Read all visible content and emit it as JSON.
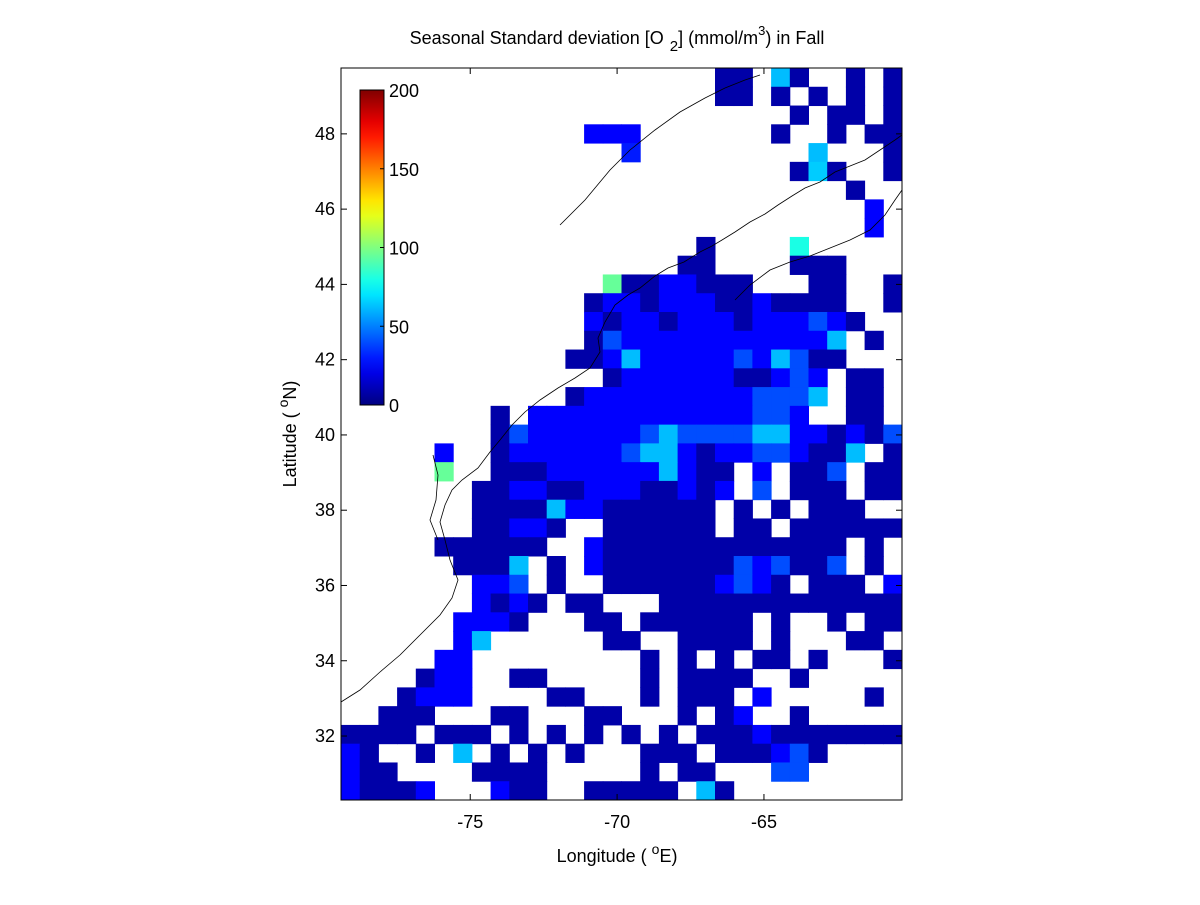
{
  "chart_data": {
    "type": "heatmap",
    "title_parts": [
      "Seasonal Standard deviation [O",
      "2",
      "] (mmol/m",
      "3",
      ") in  Fall"
    ],
    "xlabel_parts": [
      "Longitude ( ",
      "o",
      "E)"
    ],
    "ylabel_parts": [
      "Latitude ( ",
      "o",
      "N)"
    ],
    "xlim": [
      -79.4,
      -60.3
    ],
    "ylim": [
      30.3,
      49.75
    ],
    "xticks": [
      -75,
      -70,
      -65
    ],
    "yticks": [
      32,
      34,
      36,
      38,
      40,
      42,
      44,
      46,
      48
    ],
    "clim": [
      0,
      200
    ],
    "cticks": [
      0,
      50,
      100,
      150,
      200
    ],
    "colormap": "jet",
    "z": [
      [
        null,
        null,
        null,
        null,
        null,
        null,
        null,
        null,
        null,
        null,
        null,
        null,
        null,
        null,
        null,
        null,
        null,
        null,
        null,
        null,
        8,
        8,
        null,
        62,
        8,
        null,
        null,
        8,
        null,
        8
      ],
      [
        null,
        null,
        null,
        null,
        null,
        null,
        null,
        null,
        null,
        null,
        null,
        null,
        null,
        null,
        null,
        null,
        null,
        null,
        null,
        null,
        8,
        8,
        null,
        8,
        null,
        8,
        null,
        8,
        null,
        8
      ],
      [
        null,
        null,
        null,
        null,
        null,
        null,
        null,
        null,
        null,
        null,
        null,
        null,
        null,
        null,
        null,
        null,
        null,
        null,
        null,
        null,
        null,
        null,
        null,
        null,
        8,
        null,
        8,
        8,
        null,
        8
      ],
      [
        null,
        null,
        null,
        null,
        null,
        null,
        null,
        null,
        null,
        null,
        null,
        null,
        null,
        25,
        25,
        25,
        null,
        null,
        null,
        null,
        null,
        null,
        null,
        8,
        null,
        null,
        8,
        null,
        8,
        8
      ],
      [
        null,
        null,
        null,
        null,
        null,
        null,
        null,
        null,
        null,
        null,
        null,
        null,
        null,
        null,
        null,
        30,
        null,
        null,
        null,
        null,
        null,
        null,
        null,
        null,
        null,
        62,
        null,
        null,
        null,
        8
      ],
      [
        null,
        null,
        null,
        null,
        null,
        null,
        null,
        null,
        null,
        null,
        null,
        null,
        null,
        null,
        null,
        null,
        null,
        null,
        null,
        null,
        null,
        null,
        null,
        null,
        8,
        65,
        8,
        null,
        null,
        8
      ],
      [
        null,
        null,
        null,
        null,
        null,
        null,
        null,
        null,
        null,
        null,
        null,
        null,
        null,
        null,
        null,
        null,
        null,
        null,
        null,
        null,
        null,
        null,
        null,
        null,
        null,
        null,
        null,
        8,
        null,
        null
      ],
      [
        null,
        null,
        null,
        null,
        null,
        null,
        null,
        null,
        null,
        null,
        null,
        null,
        null,
        null,
        null,
        null,
        null,
        null,
        null,
        null,
        null,
        null,
        null,
        null,
        null,
        null,
        null,
        null,
        25,
        null
      ],
      [
        null,
        null,
        null,
        null,
        null,
        null,
        null,
        null,
        null,
        null,
        null,
        null,
        null,
        null,
        null,
        null,
        null,
        null,
        null,
        null,
        null,
        null,
        null,
        null,
        null,
        null,
        null,
        null,
        25,
        null
      ],
      [
        null,
        null,
        null,
        null,
        null,
        null,
        null,
        null,
        null,
        null,
        null,
        null,
        null,
        null,
        null,
        null,
        null,
        null,
        null,
        8,
        null,
        null,
        null,
        null,
        80,
        null,
        null,
        null,
        null,
        null
      ],
      [
        null,
        null,
        null,
        null,
        null,
        null,
        null,
        null,
        null,
        null,
        null,
        null,
        null,
        null,
        null,
        null,
        null,
        null,
        8,
        8,
        null,
        null,
        null,
        null,
        8,
        8,
        8,
        null,
        null,
        null
      ],
      [
        null,
        null,
        null,
        null,
        null,
        null,
        null,
        null,
        null,
        null,
        null,
        null,
        null,
        null,
        95,
        8,
        8,
        25,
        25,
        8,
        8,
        8,
        null,
        null,
        null,
        8,
        8,
        null,
        null,
        8
      ],
      [
        null,
        null,
        null,
        null,
        null,
        null,
        null,
        null,
        null,
        null,
        null,
        null,
        null,
        8,
        25,
        25,
        8,
        25,
        25,
        25,
        8,
        8,
        25,
        8,
        8,
        8,
        8,
        null,
        null,
        8
      ],
      [
        null,
        null,
        null,
        null,
        null,
        null,
        null,
        null,
        null,
        null,
        null,
        null,
        null,
        25,
        8,
        25,
        25,
        8,
        25,
        25,
        25,
        8,
        25,
        25,
        25,
        40,
        25,
        8,
        null,
        null
      ],
      [
        null,
        null,
        null,
        null,
        null,
        null,
        null,
        null,
        null,
        null,
        null,
        null,
        null,
        8,
        40,
        25,
        25,
        25,
        25,
        25,
        25,
        25,
        25,
        25,
        25,
        25,
        62,
        null,
        8,
        null
      ],
      [
        null,
        null,
        null,
        null,
        null,
        null,
        null,
        null,
        null,
        null,
        null,
        null,
        8,
        8,
        25,
        62,
        25,
        25,
        25,
        25,
        25,
        40,
        25,
        62,
        40,
        8,
        8,
        null,
        null,
        null
      ],
      [
        null,
        null,
        null,
        null,
        null,
        null,
        null,
        null,
        null,
        null,
        null,
        null,
        null,
        null,
        8,
        25,
        25,
        25,
        25,
        25,
        25,
        8,
        8,
        25,
        40,
        25,
        null,
        8,
        8,
        null
      ],
      [
        null,
        null,
        null,
        null,
        null,
        null,
        null,
        null,
        null,
        null,
        null,
        null,
        8,
        25,
        25,
        25,
        25,
        25,
        25,
        25,
        25,
        25,
        40,
        40,
        40,
        62,
        null,
        8,
        8,
        null
      ],
      [
        null,
        null,
        null,
        null,
        null,
        null,
        null,
        null,
        8,
        null,
        25,
        25,
        25,
        25,
        25,
        25,
        25,
        25,
        25,
        25,
        25,
        25,
        40,
        40,
        25,
        null,
        null,
        8,
        8,
        null
      ],
      [
        null,
        null,
        null,
        null,
        null,
        null,
        null,
        null,
        8,
        40,
        25,
        25,
        25,
        25,
        25,
        25,
        40,
        62,
        40,
        40,
        40,
        40,
        62,
        62,
        25,
        25,
        8,
        25,
        8,
        40
      ],
      [
        null,
        null,
        null,
        null,
        null,
        25,
        null,
        null,
        8,
        25,
        25,
        25,
        25,
        25,
        25,
        40,
        62,
        62,
        25,
        8,
        25,
        25,
        40,
        40,
        25,
        8,
        8,
        62,
        null,
        8
      ],
      [
        null,
        null,
        null,
        null,
        null,
        95,
        null,
        null,
        8,
        8,
        8,
        25,
        25,
        25,
        25,
        25,
        25,
        62,
        25,
        8,
        8,
        null,
        25,
        null,
        8,
        8,
        40,
        null,
        8,
        8
      ],
      [
        null,
        null,
        null,
        null,
        null,
        null,
        null,
        8,
        8,
        25,
        25,
        8,
        8,
        25,
        25,
        25,
        8,
        8,
        25,
        8,
        25,
        null,
        40,
        null,
        8,
        8,
        8,
        null,
        8,
        8
      ],
      [
        null,
        null,
        null,
        null,
        null,
        null,
        null,
        8,
        8,
        8,
        8,
        62,
        25,
        25,
        8,
        8,
        8,
        8,
        8,
        8,
        null,
        8,
        null,
        8,
        null,
        8,
        8,
        8,
        null,
        null
      ],
      [
        null,
        null,
        null,
        null,
        null,
        null,
        null,
        8,
        8,
        25,
        25,
        8,
        null,
        null,
        8,
        8,
        8,
        8,
        8,
        8,
        null,
        8,
        8,
        null,
        8,
        8,
        8,
        8,
        8,
        8
      ],
      [
        null,
        null,
        null,
        null,
        null,
        8,
        8,
        8,
        8,
        8,
        8,
        null,
        null,
        25,
        8,
        8,
        8,
        8,
        8,
        8,
        8,
        8,
        8,
        8,
        8,
        8,
        8,
        null,
        8,
        null
      ],
      [
        null,
        null,
        null,
        null,
        null,
        null,
        8,
        8,
        8,
        62,
        null,
        8,
        null,
        25,
        8,
        8,
        8,
        8,
        8,
        8,
        8,
        40,
        25,
        40,
        8,
        8,
        40,
        null,
        8,
        null
      ],
      [
        null,
        null,
        null,
        null,
        null,
        null,
        null,
        25,
        25,
        40,
        null,
        8,
        null,
        null,
        8,
        8,
        8,
        8,
        8,
        8,
        25,
        40,
        25,
        8,
        null,
        8,
        8,
        8,
        null,
        25
      ],
      [
        null,
        null,
        null,
        null,
        null,
        null,
        null,
        25,
        8,
        25,
        8,
        null,
        8,
        8,
        null,
        null,
        null,
        8,
        8,
        8,
        8,
        8,
        8,
        8,
        8,
        8,
        8,
        8,
        8,
        8
      ],
      [
        null,
        null,
        null,
        null,
        null,
        null,
        25,
        25,
        25,
        8,
        null,
        null,
        null,
        8,
        8,
        null,
        8,
        8,
        8,
        8,
        8,
        8,
        null,
        8,
        null,
        null,
        8,
        null,
        8,
        8
      ],
      [
        null,
        null,
        null,
        null,
        null,
        null,
        25,
        62,
        null,
        null,
        null,
        null,
        null,
        null,
        8,
        8,
        null,
        null,
        8,
        8,
        8,
        8,
        null,
        8,
        null,
        null,
        null,
        8,
        8,
        null
      ],
      [
        null,
        null,
        null,
        null,
        null,
        25,
        25,
        null,
        null,
        null,
        null,
        null,
        null,
        null,
        null,
        null,
        8,
        null,
        8,
        null,
        8,
        null,
        8,
        8,
        null,
        8,
        null,
        null,
        null,
        8
      ],
      [
        null,
        null,
        null,
        null,
        8,
        25,
        25,
        null,
        null,
        8,
        8,
        null,
        null,
        null,
        null,
        null,
        8,
        null,
        8,
        8,
        8,
        8,
        null,
        null,
        8,
        null,
        null,
        null,
        null,
        null
      ],
      [
        null,
        null,
        null,
        8,
        25,
        25,
        25,
        null,
        null,
        null,
        null,
        8,
        8,
        null,
        null,
        null,
        8,
        null,
        8,
        8,
        8,
        null,
        25,
        null,
        null,
        null,
        null,
        null,
        8,
        null
      ],
      [
        null,
        null,
        8,
        8,
        8,
        null,
        null,
        null,
        8,
        8,
        null,
        null,
        null,
        8,
        8,
        null,
        null,
        null,
        8,
        null,
        8,
        25,
        null,
        null,
        8,
        null,
        null,
        null,
        null,
        null
      ],
      [
        8,
        8,
        8,
        8,
        null,
        8,
        8,
        8,
        null,
        8,
        null,
        8,
        null,
        8,
        null,
        8,
        null,
        8,
        null,
        8,
        8,
        8,
        25,
        8,
        8,
        8,
        8,
        8,
        8,
        8
      ],
      [
        25,
        8,
        null,
        null,
        8,
        null,
        62,
        null,
        8,
        null,
        8,
        null,
        8,
        null,
        null,
        null,
        8,
        8,
        8,
        null,
        8,
        8,
        8,
        25,
        40,
        8,
        null,
        null,
        null,
        null
      ],
      [
        25,
        8,
        8,
        null,
        null,
        null,
        null,
        8,
        8,
        8,
        8,
        null,
        null,
        null,
        null,
        null,
        8,
        null,
        8,
        8,
        null,
        null,
        null,
        40,
        40,
        null,
        null,
        null,
        null,
        null
      ],
      [
        25,
        8,
        8,
        8,
        25,
        null,
        null,
        null,
        25,
        8,
        8,
        null,
        null,
        8,
        8,
        8,
        8,
        8,
        null,
        62,
        8,
        null,
        null,
        null,
        null,
        null,
        null,
        null,
        null,
        null
      ]
    ]
  }
}
